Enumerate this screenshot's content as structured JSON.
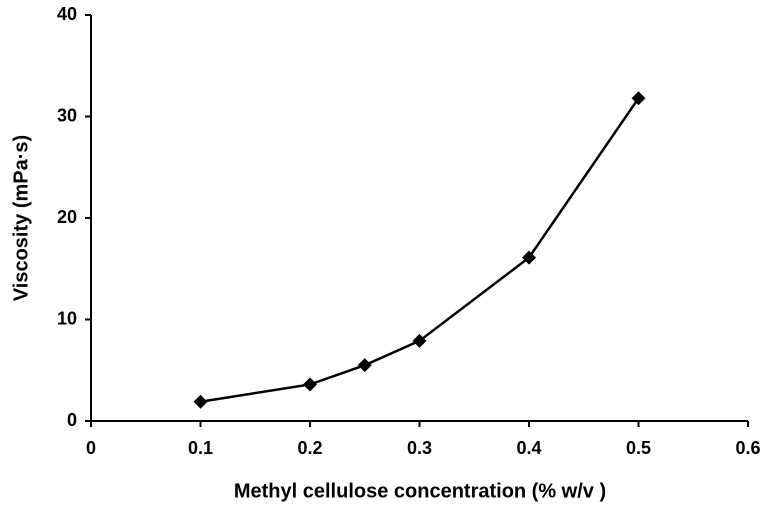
{
  "chart_data": {
    "type": "line",
    "x_label": "Methyl cellulose concentration (% w/v )",
    "y_label": "Viscosity (mPa·s)",
    "series": [
      {
        "name": "Viscosity",
        "color": "#000000",
        "x": [
          0.1,
          0.2,
          0.25,
          0.3,
          0.4,
          0.5
        ],
        "values": [
          1.9,
          3.6,
          5.5,
          7.9,
          16.1,
          31.8
        ]
      }
    ],
    "xlim": [
      0,
      0.6
    ],
    "xticks": [
      0,
      0.1,
      0.2,
      0.3,
      0.4,
      0.5,
      0.6
    ],
    "ylim": [
      0,
      40
    ],
    "yticks": [
      0,
      10,
      20,
      30,
      40
    ],
    "marker": "diamond",
    "grid": false
  }
}
